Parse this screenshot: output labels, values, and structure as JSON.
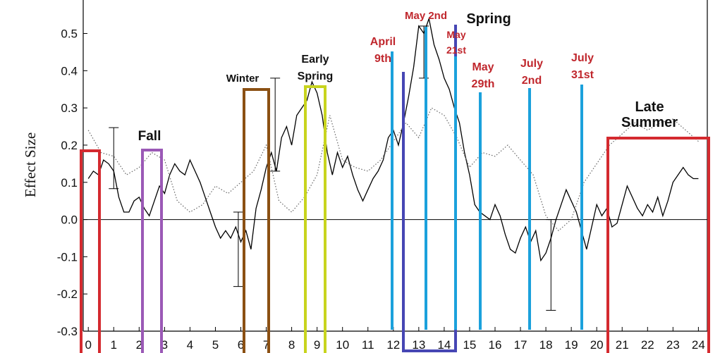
{
  "chart_data": {
    "type": "line",
    "y_label": "Effect Size",
    "xlim": [
      -0.2,
      24.35
    ],
    "ylim": [
      -0.3,
      0.59
    ],
    "xticks": [
      0,
      1,
      2,
      3,
      4,
      5,
      6,
      7,
      8,
      9,
      10,
      11,
      12,
      13,
      14,
      15,
      16,
      17,
      18,
      19,
      20,
      21,
      22,
      23,
      24
    ],
    "yticks": [
      -0.3,
      -0.2,
      -0.1,
      {
        "value": 0,
        "label": "0.0"
      },
      0.1,
      0.2,
      0.3,
      0.4,
      0.5
    ],
    "series": [
      {
        "color": "#000000",
        "style": "solid",
        "x": [
          0,
          0.2,
          0.4,
          0.6,
          0.8,
          1.0,
          1.2,
          1.4,
          1.6,
          1.8,
          2.0,
          2.2,
          2.4,
          2.6,
          2.8,
          3.0,
          3.2,
          3.4,
          3.6,
          3.8,
          4.0,
          4.2,
          4.4,
          4.6,
          4.8,
          5.0,
          5.2,
          5.4,
          5.6,
          5.8,
          6.0,
          6.2,
          6.4,
          6.6,
          6.8,
          7.0,
          7.2,
          7.4,
          7.6,
          7.8,
          8.0,
          8.2,
          8.4,
          8.6,
          8.8,
          9.0,
          9.2,
          9.4,
          9.6,
          9.8,
          10.0,
          10.2,
          10.4,
          10.6,
          10.8,
          11.0,
          11.2,
          11.4,
          11.6,
          11.8,
          12.0,
          12.2,
          12.4,
          12.6,
          12.8,
          13.0,
          13.2,
          13.4,
          13.6,
          13.8,
          14.0,
          14.2,
          14.4,
          14.6,
          14.8,
          15.0,
          15.2,
          15.4,
          15.6,
          15.8,
          16.0,
          16.2,
          16.4,
          16.6,
          16.8,
          17.0,
          17.2,
          17.4,
          17.6,
          17.8,
          18.0,
          18.2,
          18.4,
          18.6,
          18.8,
          19.0,
          19.2,
          19.4,
          19.6,
          19.8,
          20.0,
          20.2,
          20.4,
          20.6,
          20.8,
          21.0,
          21.2,
          21.4,
          21.6,
          21.8,
          22.0,
          22.2,
          22.4,
          22.6,
          22.8,
          23.0,
          23.2,
          23.4,
          23.6,
          23.8,
          24.0
        ],
        "values": [
          0.11,
          0.13,
          0.12,
          0.16,
          0.15,
          0.13,
          0.06,
          0.02,
          0.02,
          0.05,
          0.06,
          0.03,
          0.01,
          0.05,
          0.09,
          0.07,
          0.12,
          0.15,
          0.13,
          0.12,
          0.16,
          0.13,
          0.1,
          0.06,
          0.02,
          -0.02,
          -0.05,
          -0.03,
          -0.05,
          -0.02,
          -0.06,
          -0.03,
          -0.08,
          0.03,
          0.08,
          0.14,
          0.18,
          0.13,
          0.22,
          0.25,
          0.2,
          0.28,
          0.3,
          0.32,
          0.37,
          0.34,
          0.28,
          0.18,
          0.12,
          0.18,
          0.14,
          0.17,
          0.12,
          0.08,
          0.05,
          0.08,
          0.11,
          0.13,
          0.16,
          0.22,
          0.24,
          0.2,
          0.26,
          0.33,
          0.41,
          0.52,
          0.5,
          0.54,
          0.47,
          0.43,
          0.38,
          0.35,
          0.3,
          0.26,
          0.18,
          0.12,
          0.04,
          0.02,
          0.01,
          0.0,
          0.04,
          0.01,
          -0.04,
          -0.08,
          -0.09,
          -0.05,
          -0.02,
          -0.06,
          -0.03,
          -0.11,
          -0.09,
          -0.05,
          0.0,
          0.04,
          0.08,
          0.05,
          0.02,
          -0.03,
          -0.08,
          -0.02,
          0.04,
          0.01,
          0.03,
          -0.02,
          -0.01,
          0.04,
          0.09,
          0.06,
          0.03,
          0.01,
          0.04,
          0.02,
          0.06,
          0.01,
          0.05,
          0.1,
          0.12,
          0.14,
          0.12,
          0.11,
          0.11
        ]
      },
      {
        "color": "#666666",
        "style": "dotted",
        "x": [
          0,
          0.5,
          1,
          1.5,
          2,
          2.5,
          3,
          3.5,
          4,
          4.5,
          5,
          5.5,
          6,
          6.5,
          7,
          7.5,
          8,
          8.5,
          9,
          9.5,
          10,
          10.5,
          11,
          11.5,
          12,
          12.5,
          13,
          13.5,
          14,
          14.5,
          15,
          15.5,
          16,
          16.5,
          17,
          17.5,
          18,
          18.5,
          19,
          19.5,
          20,
          20.5,
          21,
          21.5,
          22,
          22.5,
          23,
          23.5,
          24
        ],
        "values": [
          0.24,
          0.18,
          0.17,
          0.12,
          0.14,
          0.18,
          0.16,
          0.05,
          0.02,
          0.04,
          0.09,
          0.07,
          0.1,
          0.13,
          0.2,
          0.05,
          0.02,
          0.06,
          0.12,
          0.28,
          0.16,
          0.14,
          0.13,
          0.16,
          0.21,
          0.26,
          0.22,
          0.3,
          0.28,
          0.22,
          0.14,
          0.18,
          0.17,
          0.2,
          0.16,
          0.12,
          0.01,
          -0.03,
          0.0,
          0.1,
          0.15,
          0.2,
          0.23,
          0.26,
          0.24,
          0.26,
          0.27,
          0.24,
          0.21
        ]
      }
    ],
    "error_bars": [
      {
        "x": 1.0,
        "value": 0.165,
        "error": 0.082
      },
      {
        "x": 5.9,
        "value": -0.08,
        "error": 0.1
      },
      {
        "x": 7.35,
        "value": 0.255,
        "error": 0.125
      },
      {
        "x": 13.2,
        "value": 0.45,
        "error": 0.07
      },
      {
        "x": 18.2,
        "value": -0.122,
        "error": 0.122
      }
    ],
    "annotations": [
      {
        "lines": [
          "Fall"
        ],
        "color": "#111111"
      },
      {
        "lines": [
          "Winter"
        ],
        "color": "#111111"
      },
      {
        "lines": [
          "Early",
          "Spring"
        ],
        "color": "#111111"
      },
      {
        "lines": [
          "April",
          "9th"
        ],
        "color": "#c0272d"
      },
      {
        "lines": [
          "May 2nd"
        ],
        "color": "#c0272d"
      },
      {
        "lines": [
          "May",
          "21st"
        ],
        "color": "#c0272d"
      },
      {
        "lines": [
          "Spring"
        ],
        "color": "#111111"
      },
      {
        "lines": [
          "May",
          "29th"
        ],
        "color": "#c0272d"
      },
      {
        "lines": [
          "July",
          "2nd"
        ],
        "color": "#c0272d"
      },
      {
        "lines": [
          "July",
          "31st"
        ],
        "color": "#c0272d"
      },
      {
        "lines": [
          "Late",
          "Summer"
        ],
        "color": "#111111"
      }
    ]
  }
}
